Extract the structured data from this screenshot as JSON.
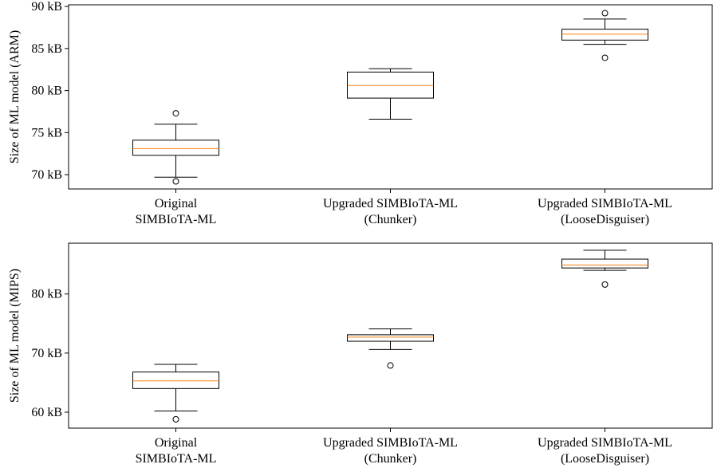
{
  "chart_data": [
    {
      "type": "box",
      "ylabel": "Size of ML model (ARM)",
      "ylim": [
        68.3,
        90.2
      ],
      "y_ticks": [
        70,
        75,
        80,
        85,
        90
      ],
      "y_tick_labels": [
        "70 kB",
        "75 kB",
        "80 kB",
        "85 kB",
        "90 kB"
      ],
      "categories": [
        "Original\nSIMBIoTA-ML",
        "Upgraded SIMBIoTA-ML\n(Chunker)",
        "Upgraded SIMBIoTA-ML\n(LooseDisguiser)"
      ],
      "boxes": [
        {
          "whisker_low": 69.7,
          "q1": 72.3,
          "median": 73.1,
          "q3": 74.1,
          "whisker_high": 76.0,
          "outliers": [
            69.2,
            77.3
          ]
        },
        {
          "whisker_low": 76.6,
          "q1": 79.1,
          "median": 80.6,
          "q3": 82.2,
          "whisker_high": 82.6,
          "outliers": []
        },
        {
          "whisker_low": 85.5,
          "q1": 86.0,
          "median": 86.7,
          "q3": 87.3,
          "whisker_high": 88.5,
          "outliers": [
            83.9,
            89.2
          ]
        }
      ]
    },
    {
      "type": "box",
      "ylabel": "Size of ML model (MIPS)",
      "ylim": [
        57.3,
        88.6
      ],
      "y_ticks": [
        60,
        70,
        80
      ],
      "y_tick_labels": [
        "60 kB",
        "70 kB",
        "80 kB"
      ],
      "categories": [
        "Original\nSIMBIoTA-ML",
        "Upgraded SIMBIoTA-ML\n(Chunker)",
        "Upgraded SIMBIoTA-ML\n(LooseDisguiser)"
      ],
      "boxes": [
        {
          "whisker_low": 60.2,
          "q1": 64.0,
          "median": 65.3,
          "q3": 66.8,
          "whisker_high": 68.1,
          "outliers": [
            58.8
          ]
        },
        {
          "whisker_low": 70.6,
          "q1": 72.0,
          "median": 72.7,
          "q3": 73.1,
          "whisker_high": 74.1,
          "outliers": [
            67.9
          ]
        },
        {
          "whisker_low": 84.0,
          "q1": 84.4,
          "median": 84.9,
          "q3": 85.9,
          "whisker_high": 87.4,
          "outliers": [
            81.6
          ]
        }
      ]
    }
  ],
  "colors": {
    "median": "#ff7f0e",
    "box": "#000000",
    "background": "#ffffff"
  }
}
